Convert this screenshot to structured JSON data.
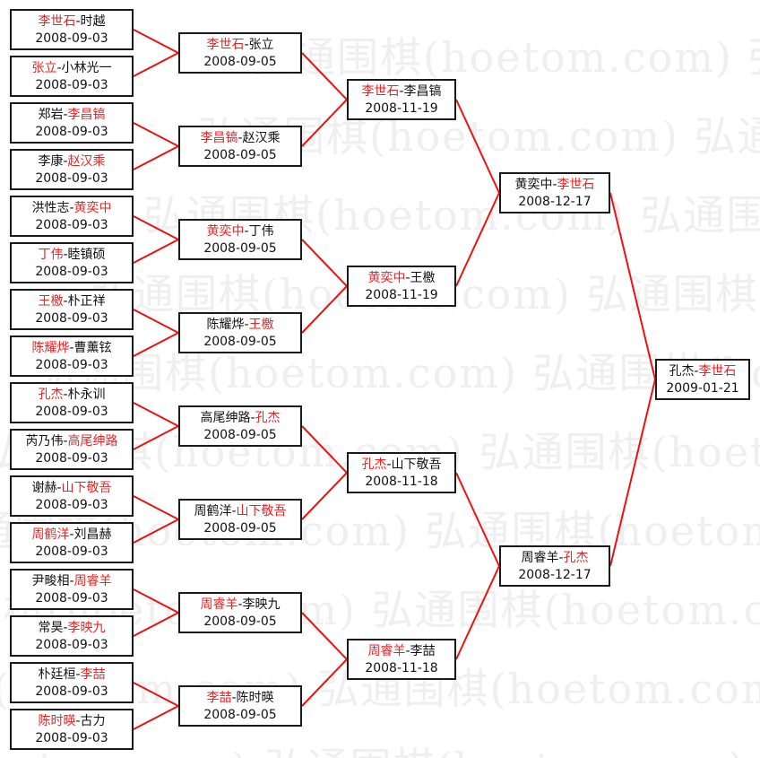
{
  "watermark": "弘通围棋(hoetom.com)",
  "colors": {
    "winner": "#ee2222",
    "line": "#ee1111",
    "border": "#1a1a1a"
  },
  "rounds": [
    [
      {
        "p1": "李世石",
        "p2": "时越",
        "winner": 0,
        "date": "2008-09-03"
      },
      {
        "p1": "张立",
        "p2": "小林光一",
        "winner": 0,
        "date": "2008-09-03"
      },
      {
        "p1": "郑岩",
        "p2": "李昌镐",
        "winner": 1,
        "date": "2008-09-03"
      },
      {
        "p1": "李康",
        "p2": "赵汉乘",
        "winner": 1,
        "date": "2008-09-03"
      },
      {
        "p1": "洪性志",
        "p2": "黄奕中",
        "winner": 1,
        "date": "2008-09-03"
      },
      {
        "p1": "丁伟",
        "p2": "睦镇硕",
        "winner": 0,
        "date": "2008-09-03"
      },
      {
        "p1": "王檄",
        "p2": "朴正祥",
        "winner": 0,
        "date": "2008-09-03"
      },
      {
        "p1": "陈耀烨",
        "p2": "曹薰铉",
        "winner": 0,
        "date": "2008-09-03"
      },
      {
        "p1": "孔杰",
        "p2": "朴永训",
        "winner": 0,
        "date": "2008-09-03"
      },
      {
        "p1": "芮乃伟",
        "p2": "高尾绅路",
        "winner": 1,
        "date": "2008-09-03"
      },
      {
        "p1": "谢赫",
        "p2": "山下敬吾",
        "winner": 1,
        "date": "2008-09-03"
      },
      {
        "p1": "周鹤洋",
        "p2": "刘昌赫",
        "winner": 0,
        "date": "2008-09-03"
      },
      {
        "p1": "尹畯相",
        "p2": "周睿羊",
        "winner": 1,
        "date": "2008-09-03"
      },
      {
        "p1": "常昊",
        "p2": "李映九",
        "winner": 1,
        "date": "2008-09-03"
      },
      {
        "p1": "朴廷桓",
        "p2": "李喆",
        "winner": 1,
        "date": "2008-09-03"
      },
      {
        "p1": "陈时暎",
        "p2": "古力",
        "winner": 0,
        "date": "2008-09-03"
      }
    ],
    [
      {
        "p1": "李世石",
        "p2": "张立",
        "winner": 0,
        "date": "2008-09-05"
      },
      {
        "p1": "李昌镐",
        "p2": "赵汉乘",
        "winner": 0,
        "date": "2008-09-05"
      },
      {
        "p1": "黄奕中",
        "p2": "丁伟",
        "winner": 0,
        "date": "2008-09-05"
      },
      {
        "p1": "陈耀烨",
        "p2": "王檄",
        "winner": 1,
        "date": "2008-09-05"
      },
      {
        "p1": "高尾绅路",
        "p2": "孔杰",
        "winner": 1,
        "date": "2008-09-05"
      },
      {
        "p1": "周鹤洋",
        "p2": "山下敬吾",
        "winner": 1,
        "date": "2008-09-05"
      },
      {
        "p1": "周睿羊",
        "p2": "李映九",
        "winner": 0,
        "date": "2008-09-05"
      },
      {
        "p1": "李喆",
        "p2": "陈时暎",
        "winner": 0,
        "date": "2008-09-05"
      }
    ],
    [
      {
        "p1": "李世石",
        "p2": "李昌镐",
        "winner": 0,
        "date": "2008-11-19"
      },
      {
        "p1": "黄奕中",
        "p2": "王檄",
        "winner": 0,
        "date": "2008-11-19"
      },
      {
        "p1": "孔杰",
        "p2": "山下敬吾",
        "winner": 0,
        "date": "2008-11-18"
      },
      {
        "p1": "周睿羊",
        "p2": "李喆",
        "winner": 0,
        "date": "2008-11-18"
      }
    ],
    [
      {
        "p1": "黄奕中",
        "p2": "李世石",
        "winner": 1,
        "date": "2008-12-17"
      },
      {
        "p1": "周睿羊",
        "p2": "孔杰",
        "winner": 1,
        "date": "2008-12-17"
      }
    ],
    [
      {
        "p1": "孔杰",
        "p2": "李世石",
        "winner": 1,
        "date": "2009-01-21"
      }
    ]
  ]
}
